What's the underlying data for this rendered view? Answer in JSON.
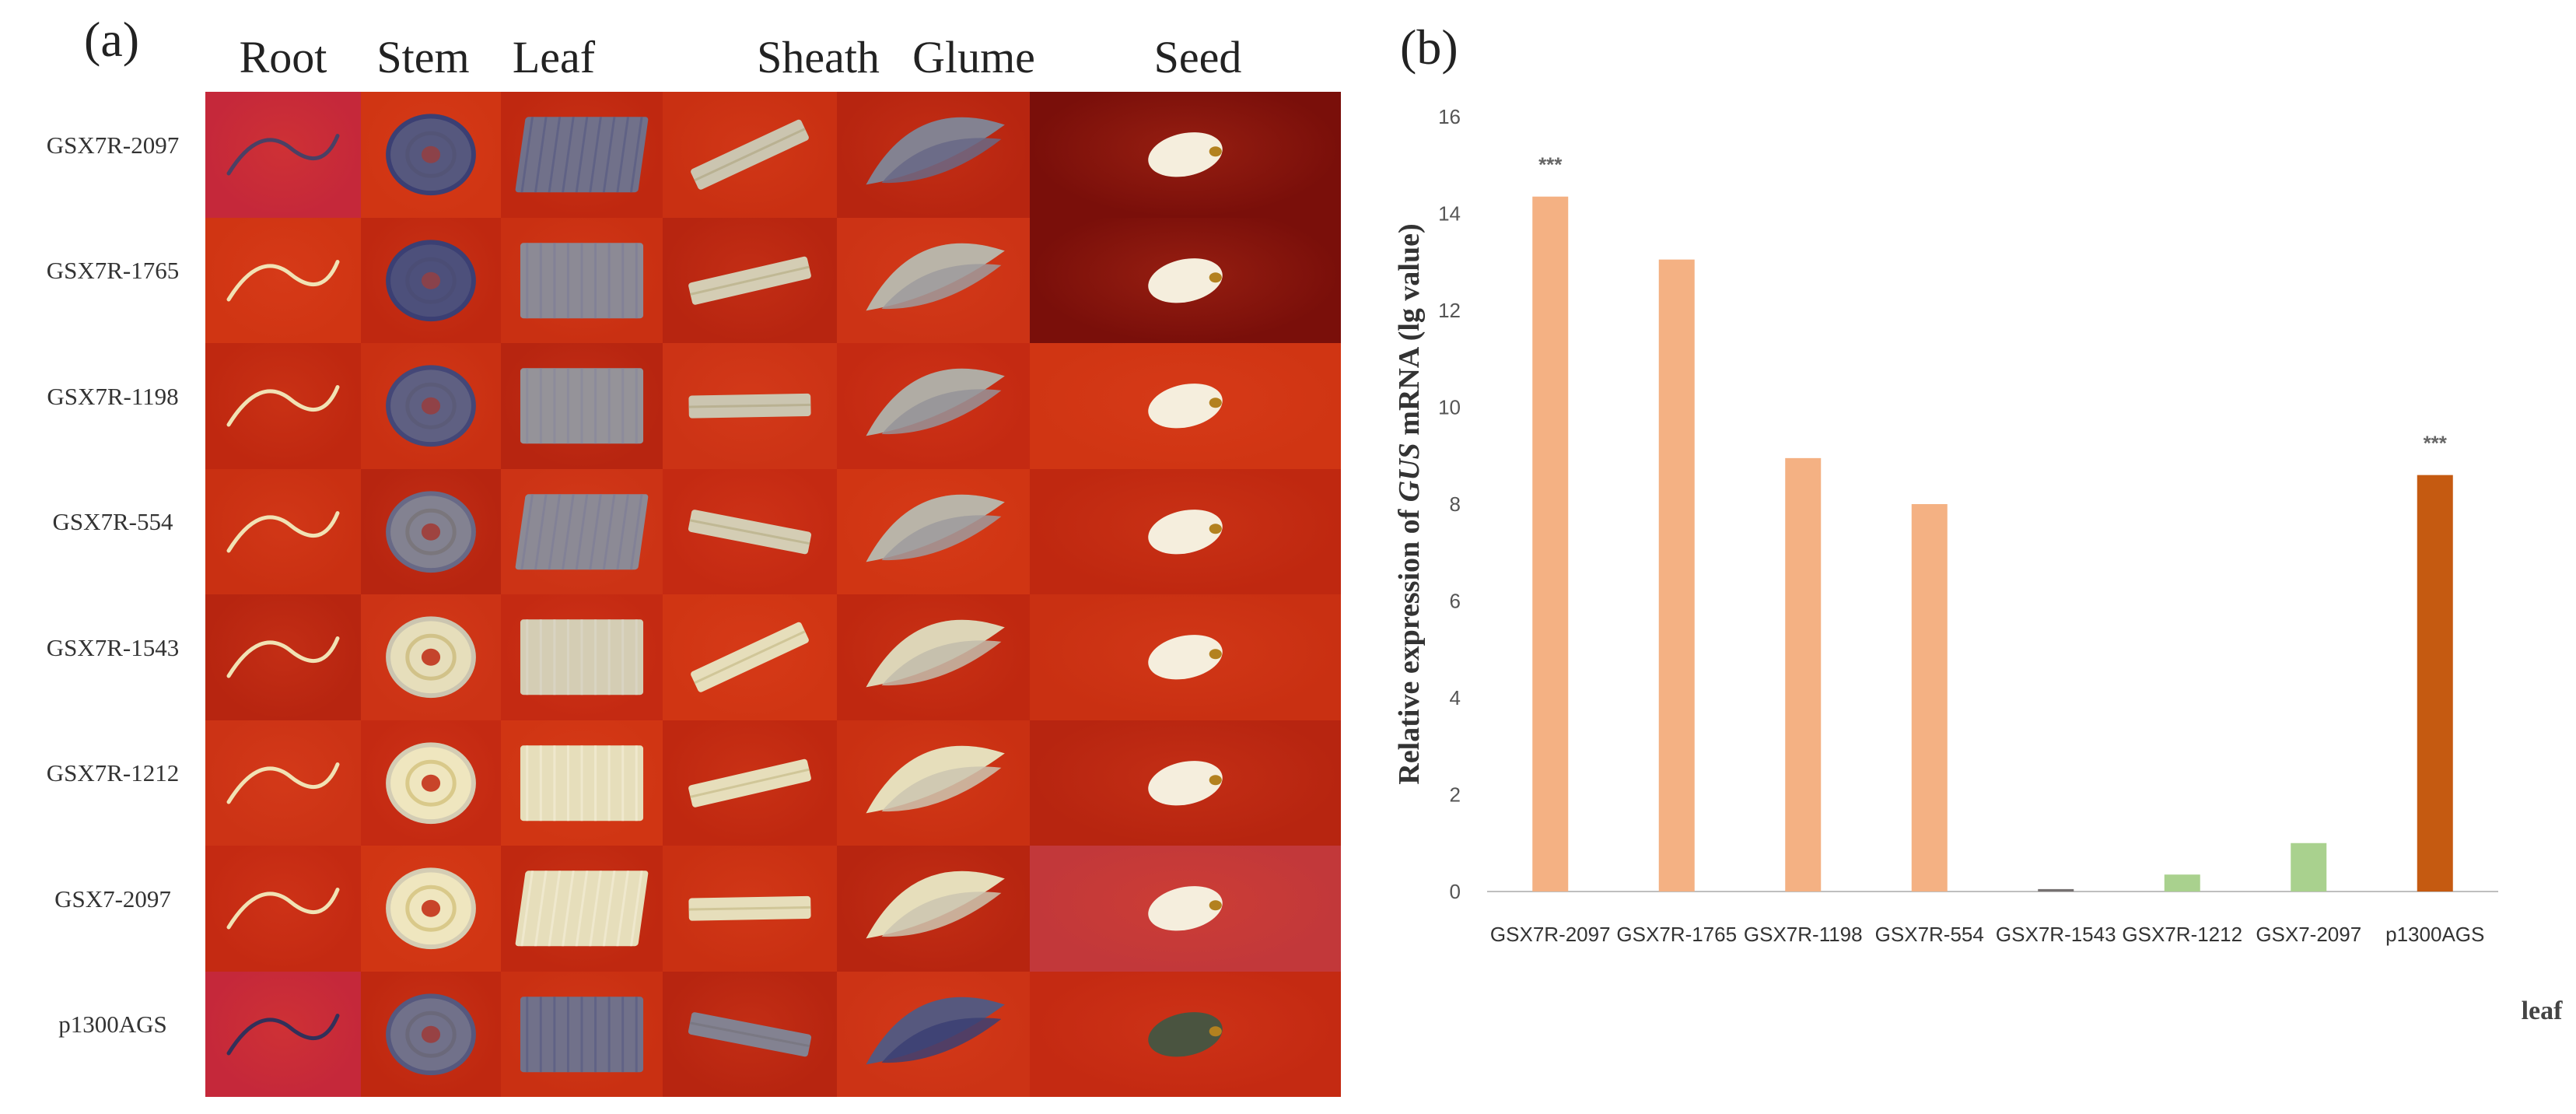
{
  "panel_a": {
    "label": "(a)",
    "columns": [
      "Root",
      "Stem",
      "Leaf",
      "Sheath",
      "Glume",
      "Seed"
    ],
    "rows": [
      "GSX7R-2097",
      "GSX7R-1765",
      "GSX7R-1198",
      "GSX7R-554",
      "GSX7R-1543",
      "GSX7R-1212",
      "GSX7-2097",
      "p1300AGS"
    ],
    "stain_levels": [
      [
        0.6,
        0.85,
        0.7,
        0.2,
        0.6,
        0.5
      ],
      [
        0.1,
        0.9,
        0.55,
        0.15,
        0.3,
        0.1
      ],
      [
        0.05,
        0.8,
        0.5,
        0.2,
        0.35,
        0.05
      ],
      [
        0.05,
        0.6,
        0.55,
        0.15,
        0.3,
        0.05
      ],
      [
        0.0,
        0.05,
        0.15,
        0.05,
        0.1,
        0.0
      ],
      [
        0.0,
        0.0,
        0.05,
        0.05,
        0.05,
        0.0
      ],
      [
        0.0,
        0.0,
        0.05,
        0.05,
        0.05,
        0.0
      ],
      [
        0.9,
        0.7,
        0.7,
        0.6,
        0.85,
        0.75
      ]
    ]
  },
  "panel_b": {
    "label": "(b)",
    "chart_data": {
      "type": "bar",
      "categories": [
        "GSX7R-2097",
        "GSX7R-1765",
        "GSX7R-1198",
        "GSX7R-554",
        "GSX7R-1543",
        "GSX7R-1212",
        "GSX7-2097",
        "p1300AGS"
      ],
      "values": [
        14.35,
        13.05,
        8.95,
        8.0,
        0.05,
        0.35,
        1.0,
        8.6
      ],
      "bar_colors": [
        "#f4b183",
        "#f4b183",
        "#f4b183",
        "#f4b183",
        "#767171",
        "#a9d18e",
        "#a9d18e",
        "#c55a11"
      ],
      "annotations": [
        "***",
        "",
        "",
        "",
        "",
        "",
        "",
        "***"
      ],
      "ylabel_parts": [
        "Relative expression of ",
        "GUS",
        " mRNA (lg value)"
      ],
      "xlabel": "leaf",
      "ylim": [
        0,
        16
      ],
      "yticks": [
        0,
        2,
        4,
        6,
        8,
        10,
        12,
        14,
        16
      ],
      "grid": false
    }
  }
}
